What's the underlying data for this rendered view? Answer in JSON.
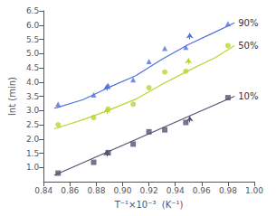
{
  "chart_data": {
    "type": "scatter",
    "title": "",
    "xlabel": "T⁻¹×10⁻³  (K⁻¹)",
    "ylabel": "lnt (min)",
    "xlim": [
      0.84,
      1.0
    ],
    "ylim": [
      0.5,
      6.5
    ],
    "xticks": [
      0.84,
      0.86,
      0.88,
      {
        "value": 0.9,
        "label": "0.90"
      },
      0.92,
      0.94,
      0.96,
      0.98,
      {
        "value": 1.0,
        "label": "1.00"
      }
    ],
    "yticks": [
      {
        "value": 1.0,
        "label": "1.0"
      },
      1.5,
      {
        "value": 2.0,
        "label": "2.0"
      },
      2.5,
      {
        "value": 3.0,
        "label": "3.0"
      },
      3.5,
      {
        "value": 4.0,
        "label": "4.0"
      },
      4.5,
      {
        "value": 5.0,
        "label": "5.0"
      },
      5.5,
      {
        "value": 6.0,
        "label": "6.0"
      },
      6.5
    ],
    "grid": false,
    "series": [
      {
        "name": "90%",
        "marker": "triangle",
        "x": [
          0.851,
          0.878,
          0.889,
          0.908,
          0.92,
          0.932,
          0.948,
          0.98
        ],
        "values": [
          3.22,
          3.55,
          3.88,
          4.08,
          4.72,
          5.18,
          5.22,
          6.05
        ],
        "fit_x": [
          0.848,
          0.85,
          0.87,
          0.89,
          0.91,
          0.93,
          0.95,
          0.97,
          0.985
        ],
        "fit_y": [
          3.08,
          3.1,
          3.38,
          3.82,
          4.22,
          4.8,
          5.32,
          5.75,
          6.08
        ],
        "arrows": [
          {
            "x": 0.888,
            "y": 3.7,
            "y_end": 3.92
          },
          {
            "x": 0.951,
            "y": 5.5,
            "y_end": 5.72
          }
        ]
      },
      {
        "name": "50%",
        "marker": "circle",
        "x": [
          0.851,
          0.878,
          0.889,
          0.908,
          0.92,
          0.932,
          0.948,
          0.98
        ],
        "values": [
          2.5,
          2.75,
          3.05,
          3.22,
          3.8,
          4.35,
          4.38,
          5.28
        ],
        "fit_x": [
          0.848,
          0.85,
          0.87,
          0.89,
          0.91,
          0.93,
          0.95,
          0.97,
          0.985
        ],
        "fit_y": [
          2.36,
          2.38,
          2.68,
          3.02,
          3.4,
          3.92,
          4.4,
          4.85,
          5.28
        ],
        "arrows": [
          {
            "x": 0.888,
            "y": 2.88,
            "y_end": 3.1
          },
          {
            "x": 0.95,
            "y": 4.62,
            "y_end": 4.84
          }
        ]
      },
      {
        "name": "10%",
        "marker": "square",
        "x": [
          0.851,
          0.878,
          0.889,
          0.908,
          0.92,
          0.932,
          0.948,
          0.98
        ],
        "values": [
          0.8,
          1.18,
          1.52,
          1.82,
          2.25,
          2.32,
          2.58,
          3.45
        ],
        "fit_x": [
          0.848,
          0.985
        ],
        "fit_y": [
          0.72,
          3.5
        ],
        "arrows": [
          {
            "x": 0.888,
            "y": 1.38,
            "y_end": 1.6
          },
          {
            "x": 0.951,
            "y": 2.58,
            "y_end": 2.8
          }
        ]
      }
    ]
  }
}
